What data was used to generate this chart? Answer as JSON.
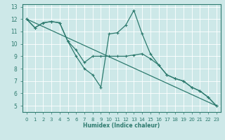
{
  "xlabel": "Humidex (Indice chaleur)",
  "bg_color": "#cde8e8",
  "grid_color": "#ffffff",
  "line_color": "#2d7a6e",
  "xlim": [
    -0.5,
    23.5
  ],
  "ylim": [
    4.5,
    13.2
  ],
  "xticks": [
    0,
    1,
    2,
    3,
    4,
    5,
    6,
    7,
    8,
    9,
    10,
    11,
    12,
    13,
    14,
    15,
    16,
    17,
    18,
    19,
    20,
    21,
    22,
    23
  ],
  "yticks": [
    5,
    6,
    7,
    8,
    9,
    10,
    11,
    12,
    13
  ],
  "series": [
    {
      "x": [
        0,
        1,
        2,
        3,
        4,
        5,
        6,
        7,
        8,
        9,
        10,
        11,
        12,
        13,
        14,
        15,
        16,
        17,
        18,
        19,
        20,
        21,
        22,
        23
      ],
      "y": [
        12,
        11.3,
        11.7,
        11.8,
        11.7,
        10.2,
        9.0,
        8.0,
        7.5,
        6.5,
        10.8,
        10.9,
        11.5,
        12.7,
        10.8,
        9.2,
        8.3,
        7.5,
        7.2,
        7.0,
        6.5,
        6.2,
        5.7,
        5.0
      ]
    },
    {
      "x": [
        0,
        1,
        2,
        3,
        4,
        5,
        6,
        7,
        8,
        9,
        10,
        11,
        12,
        13,
        14,
        15,
        16,
        17,
        18,
        19,
        20,
        21,
        22,
        23
      ],
      "y": [
        12,
        11.3,
        11.7,
        11.8,
        11.7,
        10.2,
        9.5,
        8.5,
        9.0,
        9.0,
        9.0,
        9.0,
        9.0,
        9.1,
        9.2,
        8.8,
        8.3,
        7.5,
        7.2,
        7.0,
        6.5,
        6.2,
        5.7,
        5.0
      ]
    },
    {
      "x": [
        0,
        23
      ],
      "y": [
        12,
        5.0
      ]
    }
  ]
}
